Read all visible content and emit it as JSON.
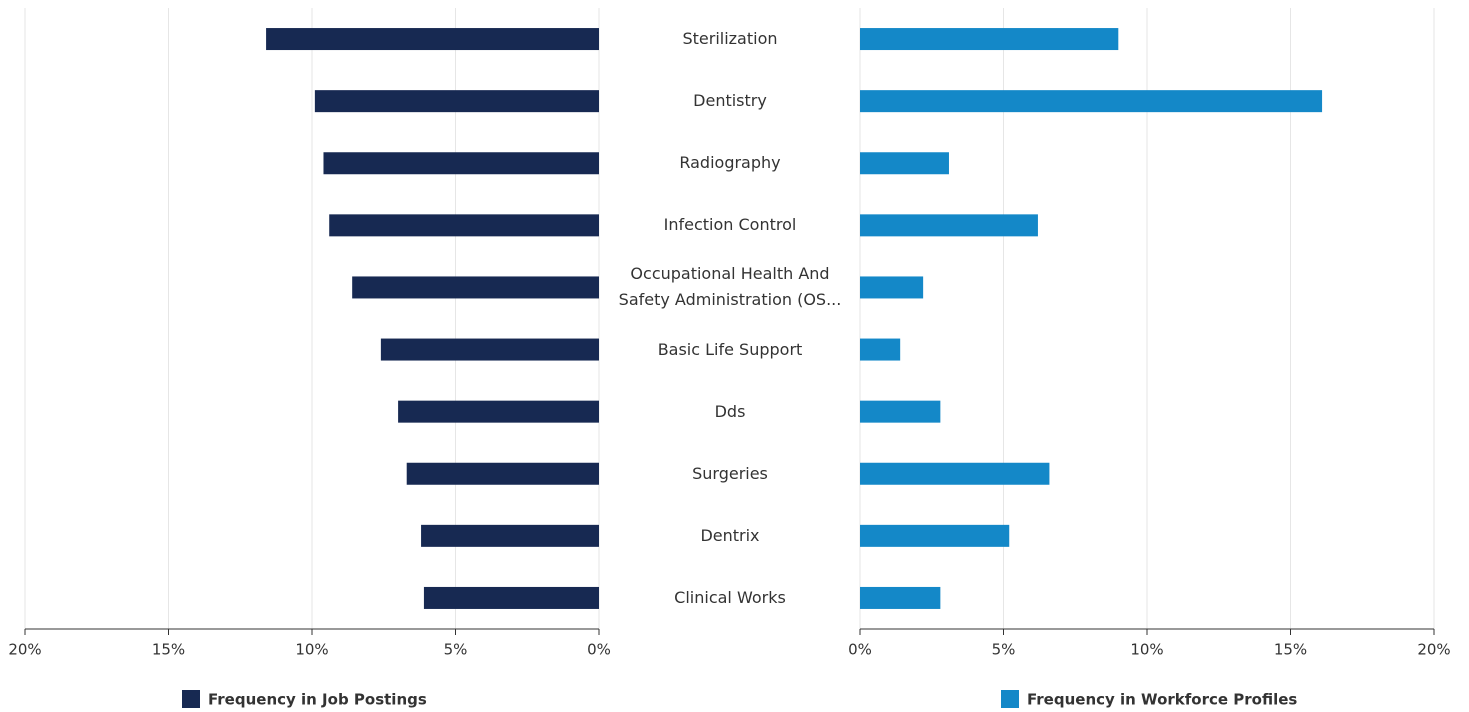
{
  "chart_data": [
    {
      "type": "bar",
      "orientation": "horizontal",
      "categories": [
        "Sterilization",
        "Dentistry",
        "Radiography",
        "Infection Control",
        "Occupational Health And Safety Administration (OS...",
        "Basic Life Support",
        "Dds",
        "Surgeries",
        "Dentrix",
        "Clinical Works"
      ],
      "series": [
        {
          "name": "Frequency in Job Postings",
          "color": "#172952",
          "values": [
            11.6,
            9.9,
            9.6,
            9.4,
            8.6,
            7.6,
            7.0,
            6.7,
            6.2,
            6.1
          ]
        }
      ],
      "xlim": [
        20,
        0
      ],
      "xticks": [
        {
          "value": 20,
          "label": "20%"
        },
        {
          "value": 15,
          "label": "15%"
        },
        {
          "value": 10,
          "label": "10%"
        },
        {
          "value": 5,
          "label": "5%"
        },
        {
          "value": 0,
          "label": "0%"
        }
      ],
      "grid": true
    },
    {
      "type": "bar",
      "orientation": "horizontal",
      "series": [
        {
          "name": "Frequency in Workforce Profiles",
          "color": "#1488c8",
          "values": [
            9.0,
            16.1,
            3.1,
            6.2,
            2.2,
            1.4,
            2.8,
            6.6,
            5.2,
            2.8
          ]
        }
      ],
      "xlim": [
        0,
        20
      ],
      "xticks": [
        {
          "value": 0,
          "label": "0%"
        },
        {
          "value": 5,
          "label": "5%"
        },
        {
          "value": 10,
          "label": "10%"
        },
        {
          "value": 15,
          "label": "15%"
        },
        {
          "value": 20,
          "label": "20%"
        }
      ],
      "grid": true
    }
  ]
}
